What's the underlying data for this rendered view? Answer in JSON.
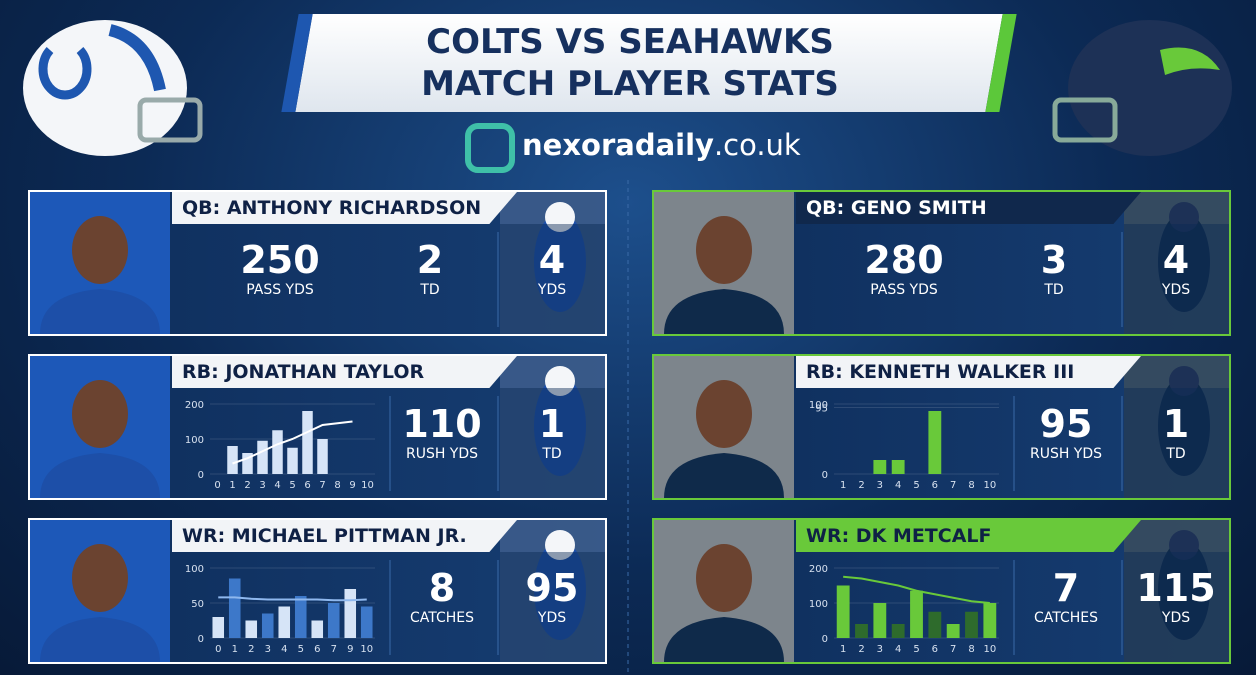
{
  "header": {
    "title_line1": "COLTS VS SEAHAWKS",
    "title_line2": "MATCH PLAYER STATS",
    "brand_name": "nexoradaily",
    "brand_domain": ".co.uk"
  },
  "teams": [
    {
      "accent": "#ffffff",
      "jersey": "#1d4fa8",
      "cards": [
        {
          "title": "QB: ANTHONY RICHARDSON",
          "stats": [
            {
              "value": 250,
              "label": "PASS YDS"
            },
            {
              "value": 2,
              "label": "TD"
            },
            {
              "value": 4,
              "label": "YDS"
            }
          ]
        },
        {
          "title": "RB: JONATHAN TAYLOR",
          "chart": {
            "categories": [
              0,
              1,
              2,
              3,
              4,
              5,
              6,
              7,
              8,
              9,
              10
            ],
            "values": [
              null,
              80,
              60,
              95,
              125,
              75,
              180,
              100,
              null,
              null,
              null
            ],
            "line": [
              null,
              30,
              45,
              65,
              85,
              100,
              120,
              140,
              145,
              150,
              null
            ],
            "ylim": [
              0,
              200
            ],
            "yticks": [
              0,
              100,
              200
            ],
            "color": "#d6e4f7",
            "line_color": "#ffffff"
          },
          "stats": [
            {
              "value": 110,
              "label": "RUSH YDS"
            },
            {
              "value": 1,
              "label": "TD"
            }
          ]
        },
        {
          "title": "WR: MICHAEL PITTMAN JR.",
          "chart": {
            "categories": [
              0,
              1,
              2,
              3,
              4,
              5,
              6,
              7,
              9,
              10
            ],
            "values": [
              30,
              85,
              25,
              35,
              45,
              60,
              25,
              50,
              70,
              45
            ],
            "line": [
              58,
              58,
              56,
              55,
              55,
              55,
              55,
              54,
              54,
              55
            ],
            "ylim": [
              0,
              100
            ],
            "yticks": [
              0,
              50,
              100
            ],
            "color": "#d6e4f7",
            "alt_color": "#3d78c9",
            "line_color": "#8fb8ee"
          },
          "stats": [
            {
              "value": 8,
              "label": "CATCHES"
            },
            {
              "value": 95,
              "label": "YDS"
            }
          ]
        }
      ]
    },
    {
      "accent": "#69c93a",
      "jersey": "#0f2a4a",
      "cards": [
        {
          "title": "QB: GENO SMITH",
          "stats": [
            {
              "value": 280,
              "label": "PASS YDS"
            },
            {
              "value": 3,
              "label": "TD"
            },
            {
              "value": 4,
              "label": "YDS"
            }
          ]
        },
        {
          "title": "RB: KENNETH WALKER III",
          "chart": {
            "categories": [
              1,
              2,
              3,
              4,
              5,
              6,
              7,
              8,
              10
            ],
            "values": [
              null,
              null,
              20,
              20,
              null,
              90,
              null,
              null,
              null
            ],
            "ylim": [
              0,
              100
            ],
            "yticks": [
              0,
              95,
              100
            ],
            "color": "#69c93a"
          },
          "stats": [
            {
              "value": 95,
              "label": "RUSH YDS"
            },
            {
              "value": 1,
              "label": "TD"
            }
          ]
        },
        {
          "title": "WR: DK METCALF",
          "chart": {
            "categories": [
              1,
              2,
              3,
              4,
              5,
              6,
              7,
              8,
              10
            ],
            "values": [
              150,
              40,
              100,
              40,
              135,
              75,
              40,
              75,
              100
            ],
            "line": [
              175,
              170,
              160,
              150,
              135,
              125,
              115,
              105,
              100
            ],
            "ylim": [
              0,
              200
            ],
            "yticks": [
              0,
              100,
              200
            ],
            "color": "#69c93a",
            "alt_color": "#2e6b2c",
            "line_color": "#69c93a"
          },
          "stats": [
            {
              "value": 7,
              "label": "CATCHES"
            },
            {
              "value": 115,
              "label": "YDS"
            }
          ]
        }
      ]
    }
  ]
}
